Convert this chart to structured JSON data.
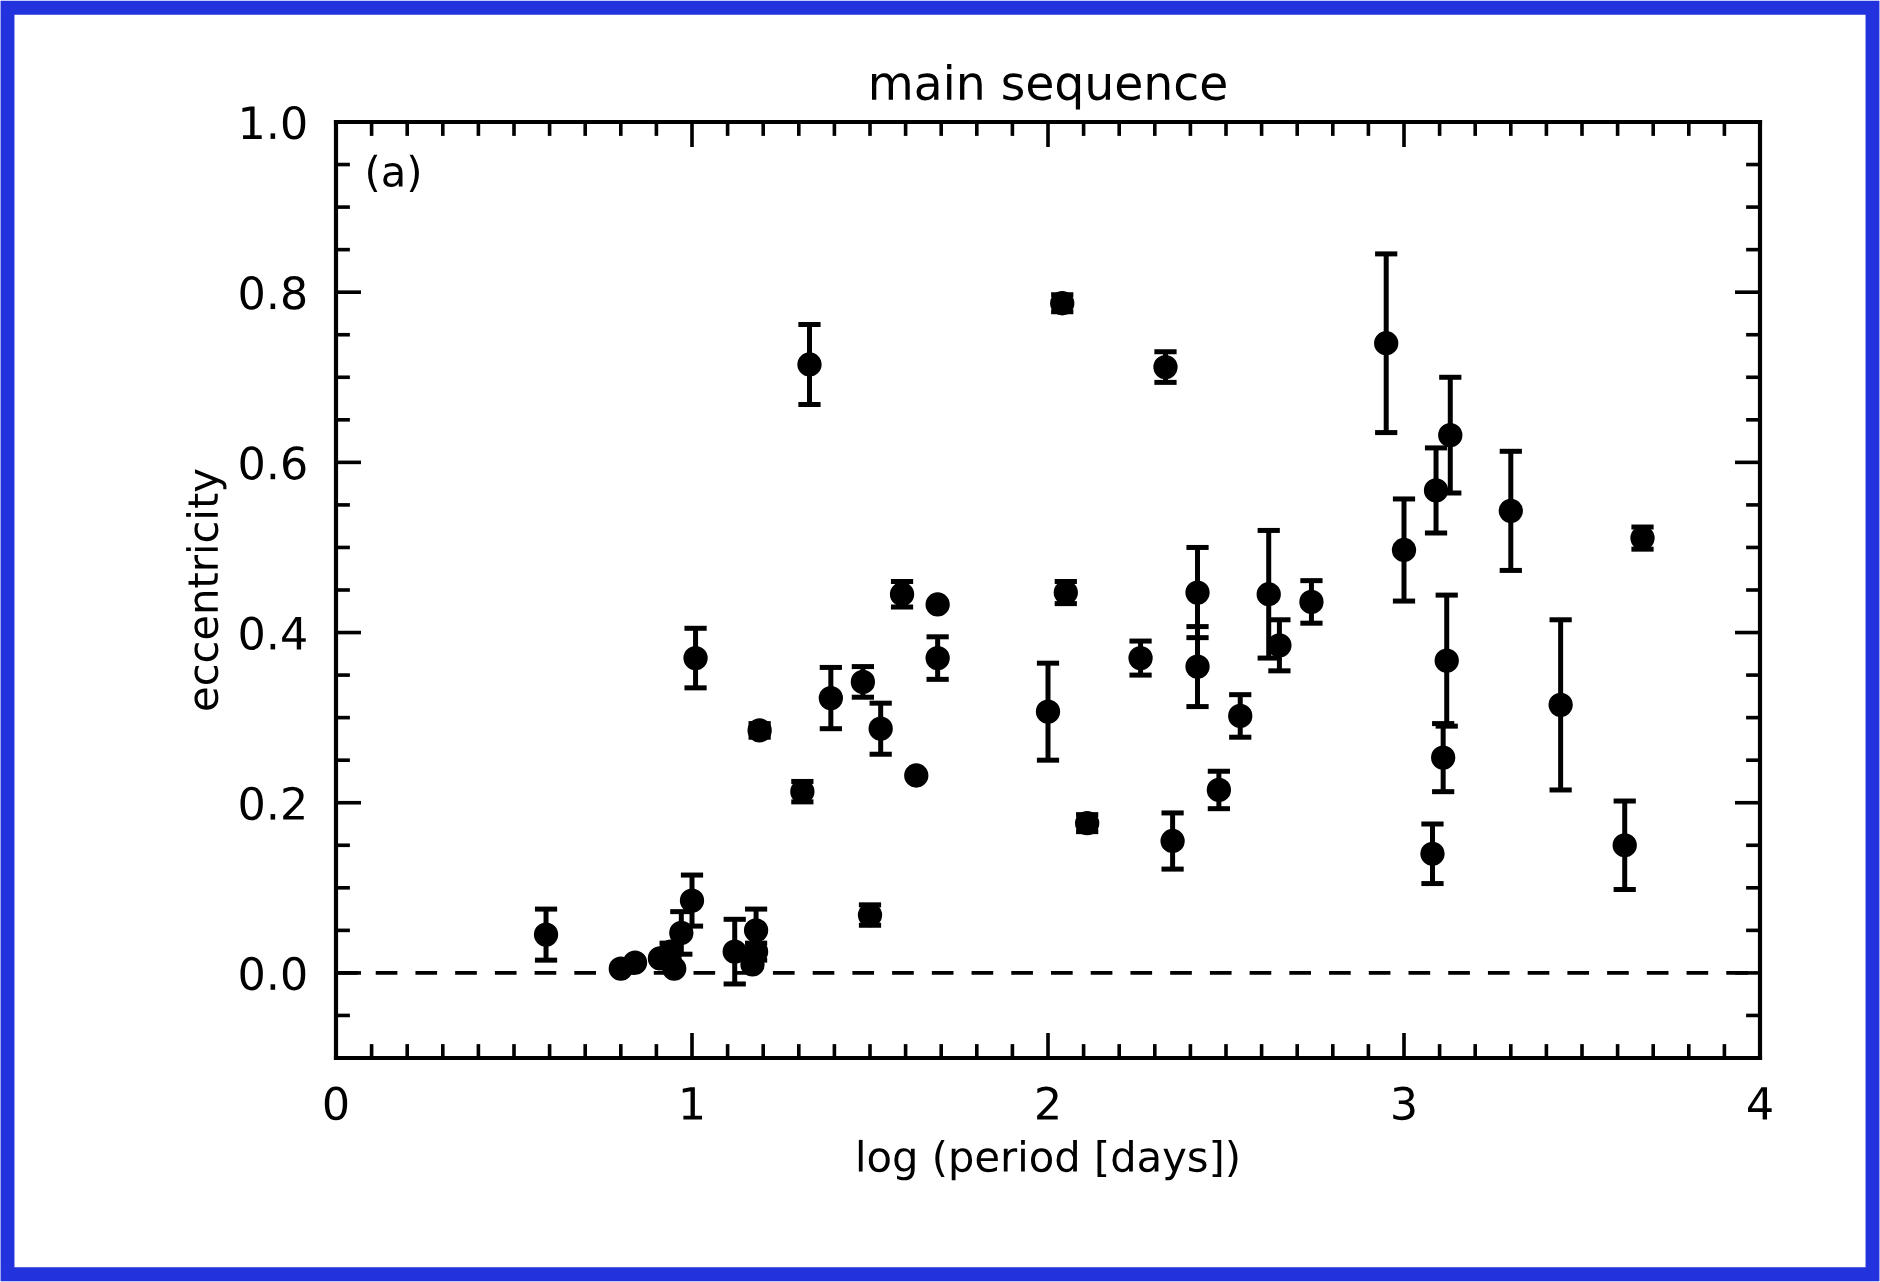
{
  "chart_data": {
    "type": "scatter",
    "title": "main sequence",
    "xlabel": "log (period [days])",
    "ylabel": "eccentricity",
    "annotations": [
      "(a)"
    ],
    "x": [
      0.59,
      0.8,
      0.84,
      0.91,
      0.94,
      0.95,
      0.97,
      1.0,
      1.01,
      1.12,
      1.17,
      1.18,
      1.18,
      1.19,
      1.31,
      1.33,
      1.39,
      1.48,
      1.5,
      1.53,
      1.59,
      1.63,
      1.69,
      1.69,
      2.0,
      2.04,
      2.05,
      2.11,
      2.26,
      2.33,
      2.35,
      2.42,
      2.42,
      2.48,
      2.54,
      2.62,
      2.65,
      2.74,
      2.95,
      3.0,
      3.08,
      3.09,
      3.11,
      3.12,
      3.13,
      3.3,
      3.44,
      3.62,
      3.67
    ],
    "values": [
      0.045,
      0.005,
      0.012,
      0.017,
      0.025,
      0.005,
      0.047,
      0.085,
      0.37,
      0.025,
      0.01,
      0.025,
      0.05,
      0.285,
      0.213,
      0.715,
      0.323,
      0.342,
      0.068,
      0.287,
      0.445,
      0.232,
      0.433,
      0.37,
      0.307,
      0.787,
      0.447,
      0.176,
      0.37,
      0.712,
      0.155,
      0.447,
      0.36,
      0.215,
      0.302,
      0.445,
      0.385,
      0.436,
      0.74,
      0.497,
      0.14,
      0.567,
      0.253,
      0.367,
      0.632,
      0.543,
      0.315,
      0.15,
      0.511
    ],
    "errors": [
      0.03,
      null,
      null,
      null,
      0.01,
      null,
      0.025,
      0.03,
      0.035,
      0.038,
      null,
      0.01,
      0.025,
      0.008,
      0.012,
      0.047,
      0.036,
      0.018,
      0.012,
      0.03,
      0.015,
      null,
      null,
      0.025,
      0.057,
      0.01,
      0.013,
      0.01,
      0.02,
      0.018,
      0.033,
      0.053,
      0.047,
      0.022,
      0.025,
      0.075,
      0.03,
      0.025,
      0.105,
      0.06,
      0.035,
      0.05,
      0.04,
      0.077,
      0.068,
      0.07,
      0.1,
      0.052,
      0.013
    ],
    "color": "#000000",
    "marker": "circle",
    "xlim": [
      0,
      4
    ],
    "xticks": [
      0,
      1,
      2,
      3,
      4
    ],
    "ylim": [
      -0.1,
      1.0
    ],
    "yticks": [
      {
        "value": 0,
        "label": "0.0"
      },
      0.2,
      0.4,
      0.6,
      0.8,
      {
        "value": 1.0,
        "label": "1.0"
      }
    ],
    "ref_lines": [
      {
        "axis": "y",
        "value": 0,
        "line_style": "dashed",
        "color": "#000000"
      }
    ],
    "grid": false,
    "legend": false
  }
}
